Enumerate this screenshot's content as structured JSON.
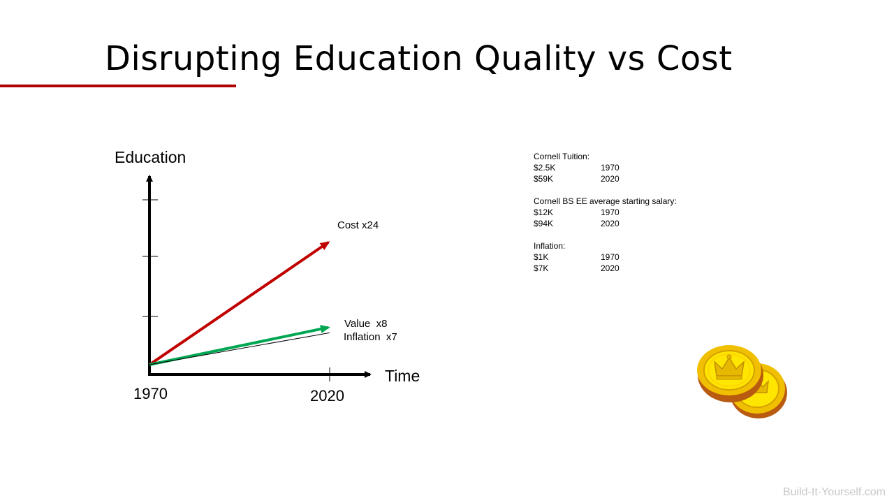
{
  "slide": {
    "title": "Disrupting Education Quality vs Cost",
    "footer": "Build-It-Yourself.com"
  },
  "colors": {
    "accent_rule": "#b00000",
    "cost_line": "#c00000",
    "value_line": "#00a651",
    "inflation_line": "#000000"
  },
  "chart_data": {
    "type": "line",
    "xlabel": "Time",
    "ylabel": "Education",
    "x_ticks": [
      "1970",
      "2020"
    ],
    "xlim": [
      1970,
      2020
    ],
    "ylim": [
      1,
      32
    ],
    "grid": false,
    "series": [
      {
        "name": "Cost x24",
        "x": [
          1970,
          2020
        ],
        "values": [
          1,
          24
        ],
        "color": "#c00000",
        "arrow": true
      },
      {
        "name": "Value  x8",
        "x": [
          1970,
          2020
        ],
        "values": [
          1,
          8
        ],
        "color": "#00a651",
        "arrow": true
      },
      {
        "name": "Inflation  x7",
        "x": [
          1970,
          2020
        ],
        "values": [
          1,
          7
        ],
        "color": "#000000",
        "arrow": false
      }
    ]
  },
  "info": {
    "sections": [
      {
        "heading": "Cornell  Tuition:",
        "rows": [
          {
            "amount": "$2.5K",
            "year": "1970"
          },
          {
            "amount": "$59K",
            "year": "2020"
          }
        ]
      },
      {
        "heading": "Cornell  BS EE average   starting salary:",
        "rows": [
          {
            "amount": "$12K",
            "year": "1970"
          },
          {
            "amount": "$94K",
            "year": "2020"
          }
        ]
      },
      {
        "heading": "Inflation:",
        "rows": [
          {
            "amount": "$1K",
            "year": "1970"
          },
          {
            "amount": "$7K",
            "year": "2020"
          }
        ]
      }
    ]
  },
  "image": {
    "icon": "gold-coins-icon"
  }
}
